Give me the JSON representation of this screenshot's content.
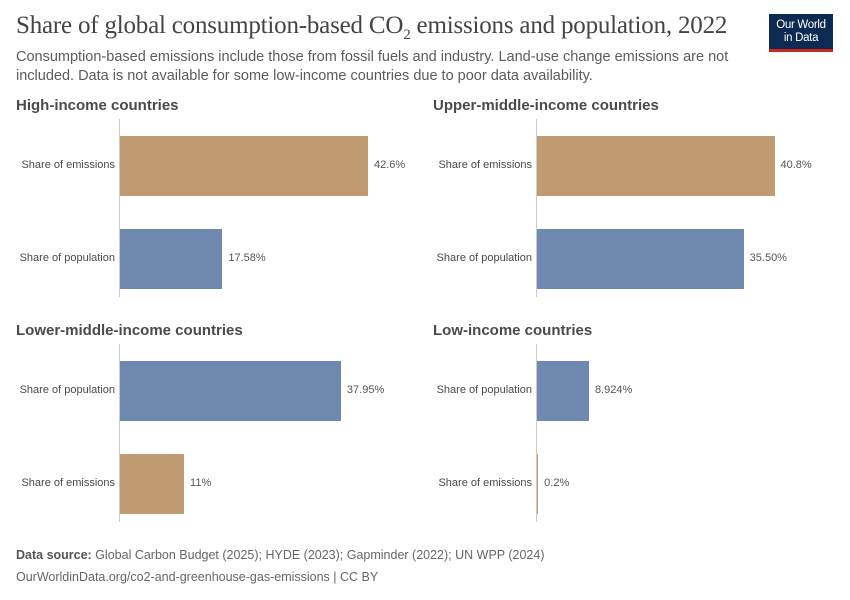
{
  "title": "Share of global consumption-based CO",
  "title_sub": "2",
  "title_rest": " emissions and population, 2022",
  "subtitle": "Consumption-based emissions include those from fossil fuels and industry. Land-use change emissions are not included. Data is not available for some low-income countries due to poor data availability.",
  "logo": {
    "line1": "Our World",
    "line2": "in Data"
  },
  "footer": {
    "source_label": "Data source:",
    "source_text": " Global Carbon Budget (2025); HYDE (2023); Gapminder (2022); UN WPP (2024)",
    "url": "OurWorldinData.org/co2-and-greenhouse-gas-emissions | CC BY"
  },
  "colors": {
    "emissions": "#c09a70",
    "population": "#6f89b0"
  },
  "chart_data": [
    {
      "type": "bar",
      "orientation": "horizontal",
      "title": "High-income countries",
      "categories": [
        "Share of emissions",
        "Share of population"
      ],
      "values": [
        42.6,
        17.58
      ],
      "labels": [
        "42.6%",
        "17.58%"
      ],
      "unit": "%"
    },
    {
      "type": "bar",
      "orientation": "horizontal",
      "title": "Upper-middle-income countries",
      "categories": [
        "Share of emissions",
        "Share of population"
      ],
      "values": [
        40.8,
        35.5
      ],
      "labels": [
        "40.8%",
        "35.50%"
      ],
      "unit": "%"
    },
    {
      "type": "bar",
      "orientation": "horizontal",
      "title": "Lower-middle-income countries",
      "categories": [
        "Share of population",
        "Share of emissions"
      ],
      "values": [
        37.95,
        11
      ],
      "labels": [
        "37.95%",
        "11%"
      ],
      "unit": "%"
    },
    {
      "type": "bar",
      "orientation": "horizontal",
      "title": "Low-income countries",
      "categories": [
        "Share of population",
        "Share of emissions"
      ],
      "values": [
        8.924,
        0.2
      ],
      "labels": [
        "8.924%",
        "0.2%"
      ],
      "unit": "%"
    }
  ]
}
